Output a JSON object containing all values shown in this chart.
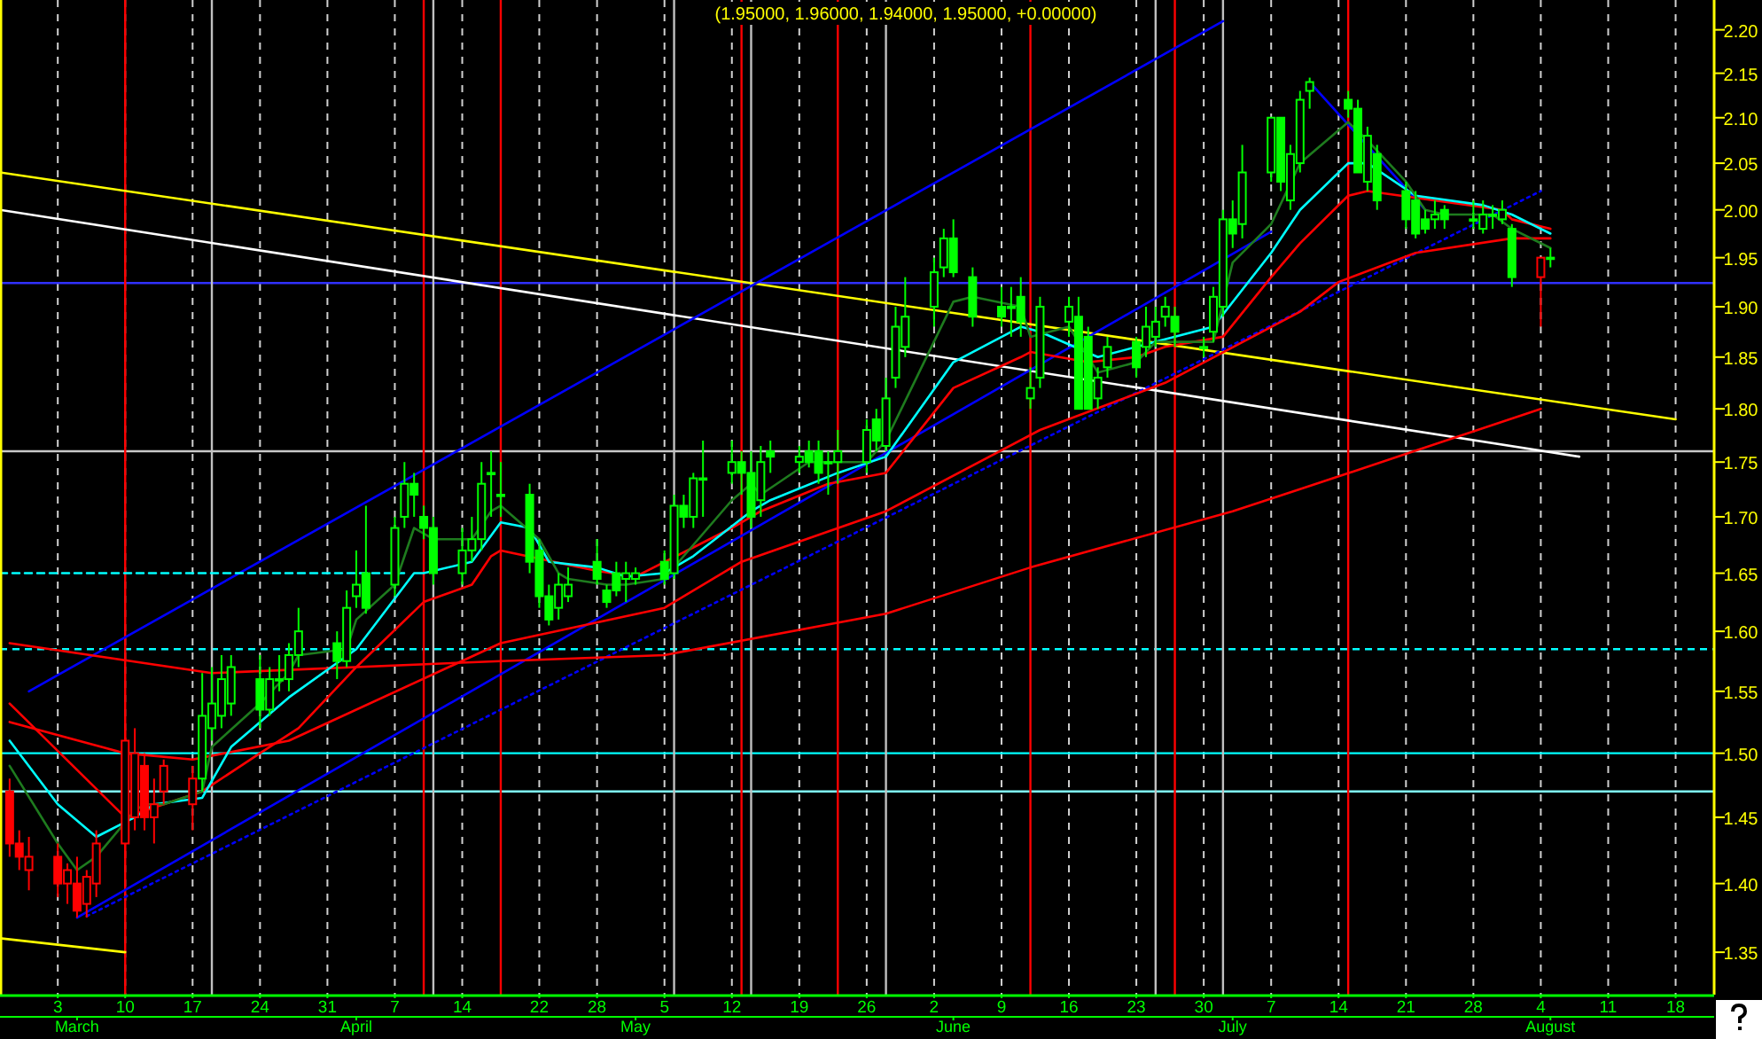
{
  "chart_data": {
    "type": "candlestick",
    "title": "(1.95000, 1.96000, 1.94000, 1.95000, +0.00000)",
    "x": [
      "--02-27",
      "--02-28",
      "--02-29",
      "--03-03",
      "--03-04",
      "--03-05",
      "--03-06",
      "--03-07",
      "--03-10",
      "--03-11",
      "--03-12",
      "--03-13",
      "--03-14",
      "--03-17",
      "--03-18",
      "--03-19",
      "--03-20",
      "--03-21",
      "--03-24",
      "--03-25",
      "--03-26",
      "--03-27",
      "--03-28",
      "--04-01",
      "--04-02",
      "--04-03",
      "--04-04",
      "--04-07",
      "--04-08",
      "--04-09",
      "--04-10",
      "--04-11",
      "--04-14",
      "--04-15",
      "--04-16",
      "--04-17",
      "--04-18",
      "--04-21",
      "--04-22",
      "--04-23",
      "--04-24",
      "--04-25",
      "--04-28",
      "--04-29",
      "--04-30",
      "--05-01",
      "--05-02",
      "--05-05",
      "--05-06",
      "--05-07",
      "--05-08",
      "--05-09",
      "--05-12",
      "--05-13",
      "--05-14",
      "--05-15",
      "--05-16",
      "--05-19",
      "--05-20",
      "--05-21",
      "--05-22",
      "--05-23",
      "--05-26",
      "--05-27",
      "--05-28",
      "--05-29",
      "--05-30",
      "--06-02",
      "--06-03",
      "--06-04",
      "--06-06",
      "--06-09",
      "--06-10",
      "--06-11",
      "--06-12",
      "--06-13",
      "--06-16",
      "--06-17",
      "--06-18",
      "--06-19",
      "--06-20",
      "--06-23",
      "--06-24",
      "--06-25",
      "--06-26",
      "--06-27",
      "--06-30",
      "--07-01",
      "--07-02",
      "--07-03",
      "--07-04",
      "--07-07",
      "--07-08",
      "--07-09",
      "--07-10",
      "--07-11",
      "--07-15",
      "--07-16",
      "--07-17",
      "--07-18",
      "--07-21",
      "--07-22",
      "--07-23",
      "--07-24",
      "--07-25",
      "--07-28",
      "--07-29",
      "--07-30",
      "--07-31",
      "--08-01",
      "--08-04",
      "--08-05"
    ],
    "ohlc": [
      [
        1.47,
        1.48,
        1.42,
        1.43
      ],
      [
        1.43,
        1.44,
        1.41,
        1.42
      ],
      [
        1.41,
        1.435,
        1.395,
        1.42
      ],
      [
        1.42,
        1.43,
        1.39,
        1.4
      ],
      [
        1.4,
        1.415,
        1.385,
        1.41
      ],
      [
        1.4,
        1.42,
        1.375,
        1.38
      ],
      [
        1.385,
        1.41,
        1.375,
        1.405
      ],
      [
        1.4,
        1.44,
        1.39,
        1.43
      ],
      [
        1.43,
        1.52,
        1.42,
        1.51
      ],
      [
        1.45,
        1.52,
        1.44,
        1.5
      ],
      [
        1.49,
        1.5,
        1.44,
        1.45
      ],
      [
        1.45,
        1.48,
        1.43,
        1.46
      ],
      [
        1.47,
        1.495,
        1.46,
        1.49
      ],
      [
        1.46,
        1.49,
        1.44,
        1.48
      ],
      [
        1.48,
        1.565,
        1.47,
        1.53
      ],
      [
        1.52,
        1.57,
        1.51,
        1.54
      ],
      [
        1.53,
        1.58,
        1.52,
        1.56
      ],
      [
        1.54,
        1.58,
        1.53,
        1.57
      ],
      [
        1.56,
        1.58,
        1.52,
        1.535
      ],
      [
        1.535,
        1.57,
        1.53,
        1.56
      ],
      [
        1.56,
        1.58,
        1.55,
        1.56
      ],
      [
        1.56,
        1.59,
        1.55,
        1.58
      ],
      [
        1.58,
        1.62,
        1.57,
        1.6
      ],
      [
        1.59,
        1.6,
        1.56,
        1.575
      ],
      [
        1.575,
        1.635,
        1.57,
        1.62
      ],
      [
        1.63,
        1.67,
        1.62,
        1.64
      ],
      [
        1.65,
        1.71,
        1.615,
        1.62
      ],
      [
        1.64,
        1.7,
        1.63,
        1.69
      ],
      [
        1.7,
        1.75,
        1.69,
        1.73
      ],
      [
        1.73,
        1.74,
        1.7,
        1.72
      ],
      [
        1.7,
        1.71,
        1.68,
        1.69
      ],
      [
        1.69,
        1.7,
        1.64,
        1.65
      ],
      [
        1.65,
        1.69,
        1.64,
        1.67
      ],
      [
        1.67,
        1.7,
        1.66,
        1.68
      ],
      [
        1.68,
        1.75,
        1.67,
        1.73
      ],
      [
        1.74,
        1.76,
        1.7,
        1.74
      ],
      [
        1.72,
        1.75,
        1.7,
        1.72
      ],
      [
        1.72,
        1.73,
        1.65,
        1.66
      ],
      [
        1.67,
        1.68,
        1.62,
        1.63
      ],
      [
        1.63,
        1.64,
        1.605,
        1.61
      ],
      [
        1.62,
        1.65,
        1.61,
        1.64
      ],
      [
        1.63,
        1.655,
        1.625,
        1.64
      ],
      [
        1.66,
        1.68,
        1.64,
        1.645
      ],
      [
        1.635,
        1.64,
        1.62,
        1.625
      ],
      [
        1.65,
        1.66,
        1.63,
        1.635
      ],
      [
        1.645,
        1.66,
        1.625,
        1.65
      ],
      [
        1.645,
        1.655,
        1.64,
        1.65
      ],
      [
        1.66,
        1.67,
        1.64,
        1.645
      ],
      [
        1.65,
        1.72,
        1.645,
        1.71
      ],
      [
        1.71,
        1.72,
        1.69,
        1.7
      ],
      [
        1.7,
        1.74,
        1.69,
        1.735
      ],
      [
        1.735,
        1.77,
        1.7,
        1.735
      ],
      [
        1.74,
        1.77,
        1.73,
        1.75
      ],
      [
        1.75,
        1.76,
        1.72,
        1.74
      ],
      [
        1.74,
        1.76,
        1.69,
        1.7
      ],
      [
        1.715,
        1.765,
        1.7,
        1.75
      ],
      [
        1.76,
        1.77,
        1.74,
        1.755
      ],
      [
        1.75,
        1.765,
        1.74,
        1.755
      ],
      [
        1.76,
        1.77,
        1.745,
        1.75
      ],
      [
        1.76,
        1.77,
        1.73,
        1.74
      ],
      [
        1.75,
        1.76,
        1.72,
        1.75
      ],
      [
        1.75,
        1.78,
        1.73,
        1.76
      ],
      [
        1.75,
        1.79,
        1.74,
        1.78
      ],
      [
        1.79,
        1.8,
        1.76,
        1.77
      ],
      [
        1.765,
        1.83,
        1.76,
        1.81
      ],
      [
        1.83,
        1.9,
        1.82,
        1.88
      ],
      [
        1.86,
        1.93,
        1.85,
        1.89
      ],
      [
        1.9,
        1.95,
        1.88,
        1.935
      ],
      [
        1.94,
        1.98,
        1.93,
        1.97
      ],
      [
        1.97,
        1.99,
        1.93,
        1.935
      ],
      [
        1.93,
        1.94,
        1.88,
        1.89
      ],
      [
        1.9,
        1.92,
        1.88,
        1.89
      ],
      [
        1.9,
        1.92,
        1.87,
        1.9
      ],
      [
        1.91,
        1.93,
        1.87,
        1.885
      ],
      [
        1.81,
        1.84,
        1.8,
        1.82
      ],
      [
        1.83,
        1.91,
        1.82,
        1.9
      ],
      [
        1.885,
        1.91,
        1.87,
        1.9
      ],
      [
        1.89,
        1.91,
        1.8,
        1.8
      ],
      [
        1.87,
        1.88,
        1.8,
        1.8
      ],
      [
        1.81,
        1.84,
        1.8,
        1.83
      ],
      [
        1.84,
        1.87,
        1.83,
        1.86
      ],
      [
        1.865,
        1.87,
        1.83,
        1.84
      ],
      [
        1.86,
        1.9,
        1.85,
        1.88
      ],
      [
        1.87,
        1.9,
        1.86,
        1.885
      ],
      [
        1.89,
        1.91,
        1.88,
        1.9
      ],
      [
        1.89,
        1.9,
        1.86,
        1.875
      ],
      [
        1.86,
        1.87,
        1.85,
        1.86
      ],
      [
        1.875,
        1.92,
        1.865,
        1.91
      ],
      [
        1.9,
        2.0,
        1.89,
        1.99
      ],
      [
        1.99,
        2.01,
        1.96,
        1.975
      ],
      [
        1.985,
        2.07,
        1.97,
        2.04
      ],
      [
        2.04,
        2.1,
        2.03,
        2.1
      ],
      [
        2.1,
        2.1,
        2.02,
        2.03
      ],
      [
        2.01,
        2.07,
        2.0,
        2.06
      ],
      [
        2.05,
        2.13,
        2.04,
        2.12
      ],
      [
        2.13,
        2.145,
        2.11,
        2.14
      ],
      [
        2.12,
        2.13,
        2.1,
        2.11
      ],
      [
        2.11,
        2.12,
        2.04,
        2.04
      ],
      [
        2.03,
        2.09,
        2.02,
        2.08
      ],
      [
        2.06,
        2.07,
        2.0,
        2.01
      ],
      [
        2.02,
        2.03,
        1.98,
        1.99
      ],
      [
        2.01,
        2.02,
        1.97,
        1.975
      ],
      [
        1.99,
        2.0,
        1.975,
        1.98
      ],
      [
        1.99,
        2.01,
        1.98,
        1.995
      ],
      [
        2.0,
        2.005,
        1.98,
        1.99
      ],
      [
        1.99,
        2.01,
        1.98,
        1.99
      ],
      [
        1.98,
        2.01,
        1.975,
        1.995
      ],
      [
        1.995,
        2.005,
        1.98,
        1.995
      ],
      [
        1.99,
        2.01,
        1.985,
        2.0
      ],
      [
        1.98,
        1.985,
        1.92,
        1.93
      ],
      [
        1.93,
        1.95,
        1.88,
        1.95
      ],
      [
        1.95,
        1.96,
        1.94,
        1.95
      ]
    ],
    "colors": [
      "#ff0000",
      "#ff0000",
      "#ff0000",
      "#ff0000",
      "#ff0000",
      "#ff0000",
      "#ff0000",
      "#ff0000",
      "#ff0000",
      "#ff0000",
      "#ff0000",
      "#ff0000",
      "#ff0000",
      "#ff0000",
      "#00ff00",
      "#00ff00",
      "#00ff00",
      "#00ff00",
      "#00ff00",
      "#00ff00",
      "#00ff00",
      "#00ff00",
      "#00ff00",
      "#00ff00",
      "#00ff00",
      "#00ff00",
      "#00ff00",
      "#00ff00",
      "#00ff00",
      "#00ff00",
      "#00ff00",
      "#00ff00",
      "#00ff00",
      "#00ff00",
      "#00ff00",
      "#00ff00",
      "#00ff00",
      "#00ff00",
      "#00ff00",
      "#00ff00",
      "#00ff00",
      "#00ff00",
      "#00ff00",
      "#00ff00",
      "#00ff00",
      "#00ff00",
      "#00ff00",
      "#00ff00",
      "#00ff00",
      "#00ff00",
      "#00ff00",
      "#00ff00",
      "#00ff00",
      "#00ff00",
      "#00ff00",
      "#00ff00",
      "#00ff00",
      "#00ff00",
      "#00ff00",
      "#00ff00",
      "#00ff00",
      "#00ff00",
      "#00ff00",
      "#00ff00",
      "#00ff00",
      "#00ff00",
      "#00ff00",
      "#00ff00",
      "#00ff00",
      "#00ff00",
      "#00ff00",
      "#00ff00",
      "#00ff00",
      "#00ff00",
      "#00ff00",
      "#00ff00",
      "#00ff00",
      "#00ff00",
      "#00ff00",
      "#00ff00",
      "#00ff00",
      "#00ff00",
      "#00ff00",
      "#00ff00",
      "#00ff00",
      "#00ff00",
      "#00ff00",
      "#00ff00",
      "#00ff00",
      "#00ff00",
      "#00ff00",
      "#00ff00",
      "#00ff00",
      "#00ff00",
      "#00ff00",
      "#00ff00",
      "#00ff00",
      "#00ff00",
      "#00ff00",
      "#00ff00",
      "#00ff00",
      "#00ff00",
      "#00ff00",
      "#00ff00",
      "#00ff00",
      "#00ff00",
      "#00ff00",
      "#00ff00",
      "#00ff00",
      "#00ff00",
      "#ff0000",
      "#00ff00"
    ],
    "series": [
      {
        "type": "line",
        "color": "#ffff00",
        "line_style": "solid",
        "x": [
          "--02-26",
          "--08-18"
        ],
        "values": [
          2.04,
          1.79
        ]
      },
      {
        "type": "line",
        "color": "#ffff00",
        "line_style": "solid",
        "x": [
          "--02-26",
          "--03-10"
        ],
        "values": [
          1.36,
          1.35
        ]
      },
      {
        "type": "line",
        "color": "#ffffff",
        "line_style": "solid",
        "x": [
          "--02-26",
          "--08-08"
        ],
        "values": [
          2.0,
          1.755
        ]
      },
      {
        "type": "line",
        "color": "#0000ff",
        "line_style": "solid",
        "x": [
          "--02-29",
          "--07-02"
        ],
        "values": [
          1.55,
          2.21
        ]
      },
      {
        "type": "line",
        "color": "#0000ff",
        "line_style": "solid",
        "x": [
          "--03-05",
          "--07-07"
        ],
        "values": [
          1.375,
          1.977
        ]
      },
      {
        "type": "line",
        "color": "#0000ff",
        "line_style": "dotted",
        "x": [
          "--03-06",
          "--08-04"
        ],
        "values": [
          1.376,
          2.02
        ]
      },
      {
        "type": "line",
        "color": "#0000ff",
        "line_style": "solid",
        "x": [
          "--07-11",
          "--07-23"
        ],
        "values": [
          2.14,
          2.0
        ]
      },
      {
        "type": "line",
        "color": "#00ffff",
        "line_style": "dashed",
        "x": [
          "--02-26",
          "--04-08"
        ],
        "values": [
          1.65,
          1.65
        ]
      },
      {
        "type": "line",
        "color": "#ff0000",
        "line_style": "solid",
        "x": [
          "--02-27",
          "--03-19",
          "--04-18",
          "--05-05",
          "--05-28",
          "--06-12",
          "--07-03",
          "--07-10",
          "--08-04"
        ],
        "values": [
          1.59,
          1.565,
          1.575,
          1.58,
          1.615,
          1.655,
          1.705,
          1.725,
          1.8
        ]
      },
      {
        "type": "line",
        "color": "#ff0000",
        "line_style": "solid",
        "x": [
          "--02-27",
          "--03-10",
          "--03-17",
          "--03-27",
          "--04-18",
          "--05-05",
          "--05-13",
          "--05-28",
          "--06-13",
          "--06-26",
          "--07-10",
          "--07-14",
          "--07-22",
          "--08-01",
          "--08-05"
        ],
        "values": [
          1.525,
          1.5,
          1.495,
          1.51,
          1.59,
          1.62,
          1.66,
          1.705,
          1.78,
          1.825,
          1.895,
          1.925,
          1.955,
          1.97,
          1.97
        ]
      },
      {
        "type": "line",
        "color": "#ff0000",
        "line_style": "solid",
        "x": [
          "--02-27",
          "--03-10",
          "--03-12",
          "--03-18",
          "--03-24",
          "--03-28",
          "--04-03",
          "--04-10",
          "--04-15",
          "--04-17",
          "--04-18",
          "--04-28",
          "--05-02",
          "--05-06",
          "--05-12",
          "--05-15",
          "--05-22",
          "--05-28",
          "--06-04",
          "--06-11",
          "--06-12",
          "--06-18",
          "--06-23",
          "--06-26",
          "--07-02",
          "--07-07",
          "--07-10",
          "--07-15",
          "--07-17",
          "--07-22",
          "--07-31",
          "--08-01",
          "--08-05"
        ],
        "values": [
          1.54,
          1.45,
          1.455,
          1.47,
          1.5,
          1.52,
          1.57,
          1.625,
          1.64,
          1.665,
          1.67,
          1.652,
          1.647,
          null,
          1.69,
          1.705,
          1.73,
          1.74,
          1.82,
          1.85,
          1.855,
          1.845,
          1.85,
          1.86,
          1.87,
          1.93,
          1.965,
          2.015,
          2.02,
          null,
          2.0,
          1.99,
          1.98
        ]
      },
      {
        "type": "line",
        "color": "#00ffff",
        "line_style": "solid",
        "x": [
          "--02-27",
          "--03-03",
          "--03-07",
          "--03-11",
          "--03-13",
          "--03-18",
          "--03-21",
          "--03-27",
          "--04-03",
          "--04-09",
          "--04-10",
          "--04-15",
          "--04-18",
          "--04-21",
          "--04-23",
          "--04-28",
          "--05-01",
          "--05-05",
          "--05-08",
          "--05-14",
          "--05-16",
          "--05-23",
          "--05-28",
          "--06-04",
          "--06-11",
          "--06-13",
          "--06-19",
          "--06-25",
          "--07-01",
          "--07-07",
          "--07-10",
          "--07-15",
          "--07-17",
          "--07-22",
          "--07-29",
          "--08-01",
          "--08-05"
        ],
        "values": [
          1.51,
          1.46,
          1.435,
          1.45,
          1.46,
          1.465,
          1.505,
          1.545,
          1.585,
          1.65,
          1.65,
          1.66,
          1.695,
          1.69,
          1.66,
          1.655,
          1.647,
          1.65,
          1.665,
          1.705,
          1.715,
          1.74,
          1.755,
          1.845,
          1.88,
          1.875,
          1.85,
          1.865,
          1.88,
          1.955,
          2.0,
          2.05,
          2.05,
          2.015,
          2.005,
          1.995,
          1.975
        ]
      },
      {
        "type": "line",
        "color": "#1e7b1e",
        "line_style": "solid",
        "x": [
          "--02-27",
          "--03-03",
          "--03-05",
          "--03-07",
          "--03-11",
          "--03-12",
          "--03-14",
          "--03-18",
          "--03-19",
          "--03-24",
          "--03-27",
          "--03-28",
          "--04-02",
          "--04-03",
          "--04-07",
          "--04-09",
          "--04-11",
          "--04-15",
          "--04-17",
          "--04-18",
          "--04-22",
          "--04-24",
          "--04-25",
          "--04-29",
          "--05-01",
          "--05-05",
          "--05-07",
          "--05-12",
          "--05-14",
          "--05-15",
          "--05-20",
          "--05-26",
          "--05-28",
          "--06-04",
          "--06-06",
          "--06-11",
          "--06-12",
          "--06-16",
          "--06-19",
          "--06-23",
          "--06-25",
          "--07-01",
          "--07-03",
          "--07-07",
          "--07-10",
          "--07-15",
          "--07-17",
          "--07-21",
          "--07-23",
          "--07-25",
          "--07-30",
          "--08-01",
          "--08-05"
        ],
        "values": [
          1.49,
          1.43,
          1.41,
          1.42,
          1.455,
          1.46,
          1.46,
          1.47,
          1.505,
          1.54,
          1.565,
          1.58,
          1.585,
          1.61,
          1.64,
          1.69,
          1.68,
          1.68,
          1.705,
          1.71,
          1.68,
          1.65,
          1.645,
          1.64,
          1.64,
          1.645,
          1.665,
          1.715,
          1.73,
          1.72,
          1.75,
          1.75,
          1.77,
          1.905,
          1.91,
          1.9,
          1.87,
          1.88,
          1.835,
          1.845,
          1.865,
          1.865,
          1.945,
          1.985,
          2.05,
          2.095,
          2.075,
          2.03,
          2.0,
          1.995,
          1.995,
          1.98,
          1.96
        ]
      }
    ],
    "ref_lines": [
      {
        "axis": "y",
        "value": 1.924,
        "color": "#3030ff",
        "line_style": "solid"
      },
      {
        "axis": "y",
        "value": 1.76,
        "color": "#c8c8c8",
        "line_style": "solid"
      },
      {
        "axis": "y",
        "value": 1.585,
        "color": "#00ffff",
        "line_style": "dashed"
      },
      {
        "axis": "y",
        "value": 1.5,
        "color": "#00ffff",
        "line_style": "solid"
      },
      {
        "axis": "y",
        "value": 1.47,
        "color": "#80ffff",
        "line_style": "solid"
      },
      {
        "axis": "x",
        "value": "--03-10",
        "color": "#ff0000",
        "line_style": "solid"
      },
      {
        "axis": "x",
        "value": "--04-10",
        "color": "#ff0000",
        "line_style": "solid"
      },
      {
        "axis": "x",
        "value": "--04-18",
        "color": "#ff0000",
        "line_style": "solid"
      },
      {
        "axis": "x",
        "value": "--05-13",
        "color": "#ff0000",
        "line_style": "solid"
      },
      {
        "axis": "x",
        "value": "--05-23",
        "color": "#ff0000",
        "line_style": "solid"
      },
      {
        "axis": "x",
        "value": "--06-12",
        "color": "#ff0000",
        "line_style": "solid"
      },
      {
        "axis": "x",
        "value": "--06-27",
        "color": "#ff0000",
        "line_style": "solid"
      },
      {
        "axis": "x",
        "value": "--07-15",
        "color": "#ff0000",
        "line_style": "solid"
      },
      {
        "axis": "x",
        "value": "--03-19",
        "color": "#c0c0c0",
        "line_style": "solid"
      },
      {
        "axis": "x",
        "value": "--04-11",
        "color": "#c0c0c0",
        "line_style": "solid"
      },
      {
        "axis": "x",
        "value": "--05-06",
        "color": "#c0c0c0",
        "line_style": "solid"
      },
      {
        "axis": "x",
        "value": "--05-14",
        "color": "#c0c0c0",
        "line_style": "solid"
      },
      {
        "axis": "x",
        "value": "--05-28",
        "color": "#c0c0c0",
        "line_style": "solid"
      },
      {
        "axis": "x",
        "value": "--06-25",
        "color": "#c0c0c0",
        "line_style": "solid"
      },
      {
        "axis": "x",
        "value": "--07-02",
        "color": "#c0c0c0",
        "line_style": "solid"
      }
    ],
    "x2lim": [
      "--02-26",
      "--08-22"
    ],
    "x2ticks": [
      {
        "value": "--03-05",
        "label": "March"
      },
      {
        "value": "--04-03",
        "label": "April"
      },
      {
        "value": "--05-02",
        "label": "May"
      },
      {
        "value": "--06-04",
        "label": "June"
      },
      {
        "value": "--07-03",
        "label": "July"
      },
      {
        "value": "--08-05",
        "label": "August"
      }
    ],
    "xlim": [
      "--02-26",
      "--08-22"
    ],
    "xticks": [
      {
        "value": "--03-03",
        "label": "3"
      },
      {
        "value": "--03-10",
        "label": "10"
      },
      {
        "value": "--03-17",
        "label": "17"
      },
      {
        "value": "--03-24",
        "label": "24"
      },
      {
        "value": "--03-31",
        "label": "31"
      },
      {
        "value": "--04-07",
        "label": "7"
      },
      {
        "value": "--04-14",
        "label": "14"
      },
      {
        "value": "--04-22",
        "label": "22"
      },
      {
        "value": "--04-28",
        "label": "28"
      },
      {
        "value": "--05-05",
        "label": "5"
      },
      {
        "value": "--05-12",
        "label": "12"
      },
      {
        "value": "--05-19",
        "label": "19"
      },
      {
        "value": "--05-26",
        "label": "26"
      },
      {
        "value": "--06-02",
        "label": "2"
      },
      {
        "value": "--06-09",
        "label": "9"
      },
      {
        "value": "--06-16",
        "label": "16"
      },
      {
        "value": "--06-23",
        "label": "23"
      },
      {
        "value": "--06-30",
        "label": "30"
      },
      {
        "value": "--07-07",
        "label": "7"
      },
      {
        "value": "--07-14",
        "label": "14"
      },
      {
        "value": "--07-21",
        "label": "21"
      },
      {
        "value": "--07-28",
        "label": "28"
      },
      {
        "value": "--08-04",
        "label": "4"
      },
      {
        "value": "--08-11",
        "label": "11"
      },
      {
        "value": "--08-18",
        "label": "18"
      }
    ],
    "ylim": [
      1.32,
      2.235
    ],
    "yticks": [
      1.35,
      {
        "value": 1.4,
        "label": "1.40"
      },
      1.45,
      {
        "value": 1.5,
        "label": "1.50"
      },
      1.55,
      {
        "value": 1.6,
        "label": "1.60"
      },
      1.65,
      {
        "value": 1.7,
        "label": "1.70"
      },
      1.75,
      {
        "value": 1.8,
        "label": "1.80"
      },
      1.85,
      {
        "value": 1.9,
        "label": "1.90"
      },
      1.95,
      {
        "value": 2.0,
        "label": "2.00"
      },
      2.05,
      {
        "value": 2.1,
        "label": "2.10"
      },
      2.15,
      {
        "value": 2.2,
        "label": "2.20"
      }
    ],
    "log": "y",
    "grid": "x"
  }
}
